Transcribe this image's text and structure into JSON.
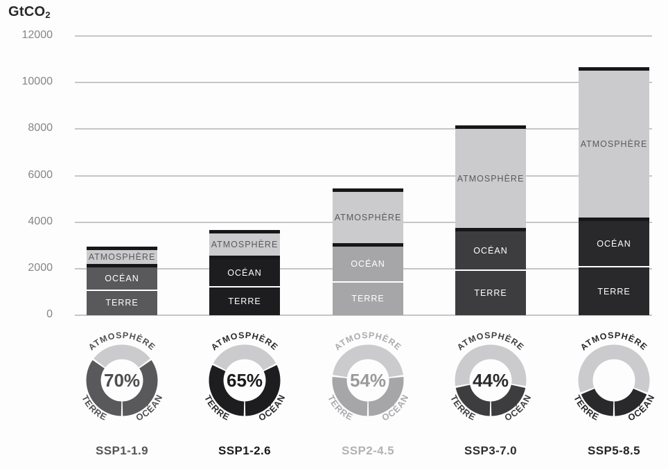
{
  "title": {
    "main": "GtCO",
    "sub": "2",
    "full": "GtCO2"
  },
  "chart_data": {
    "type": "bar",
    "subtype": "stacked-bar-with-donut-share",
    "title": "GtCO2",
    "ylabel": "GtCO2",
    "ylim": [
      0,
      12000
    ],
    "ytick_step": 2000,
    "ytick_labels": [
      "12000",
      "10000",
      "8000",
      "6000",
      "4000",
      "2000",
      "0"
    ],
    "grid": true,
    "legend_position": "in-bar-labels",
    "categories": [
      "SSP1-1.9",
      "SSP1-2.6",
      "SSP2-4.5",
      "SSP3-7.0",
      "SSP5-8.5"
    ],
    "series": [
      {
        "name": "TERRE",
        "values": [
          1050,
          1200,
          1400,
          1900,
          2050
        ]
      },
      {
        "name": "OCÉAN",
        "values": [
          1000,
          1200,
          1550,
          1700,
          2000
        ]
      },
      {
        "name": "ATMOSPHÈRE",
        "values": [
          900,
          1250,
          2500,
          4550,
          6600
        ]
      }
    ],
    "totals": [
      2950,
      3650,
      5450,
      8150,
      10650
    ],
    "absorbed_share_pct": [
      70,
      65,
      54,
      44,
      38
    ],
    "donut_center_labels": [
      "70%",
      "65%",
      "54%",
      "44%",
      ""
    ],
    "donut_segment_labels": {
      "top": "ATMOSPHÈRE",
      "bottom_left": "TERRE",
      "bottom_right": "OCÉAN"
    }
  },
  "styles": {
    "background": "#fdfdfd",
    "grid_color": "#c6c6c6",
    "tick_text_color": "#85858a",
    "title_color": "#29292b",
    "atmosphere_fill": "#cbcbcd",
    "atmosphere_text": "#59595b",
    "cap_color": "#171719",
    "divider_white": "#ffffff",
    "scenarios": [
      {
        "dark": "#59595b",
        "label": "#545456",
        "pct_text": "#4e4e50",
        "donut_label": "#515153"
      },
      {
        "dark": "#1d1d1f",
        "label": "#1a1a1c",
        "pct_text": "#1a1a1c",
        "donut_label": "#2b2b2d"
      },
      {
        "dark": "#a6a6a8",
        "label": "#b2b2b4",
        "pct_text": "#9a9a9c",
        "donut_label": "#ababad"
      },
      {
        "dark": "#3d3d3f",
        "label": "#2e2e30",
        "pct_text": "#2a2a2c",
        "donut_label": "#404042"
      },
      {
        "dark": "#29292b",
        "label": "#242426",
        "pct_text": "#242426",
        "donut_label": "#272729"
      }
    ]
  }
}
